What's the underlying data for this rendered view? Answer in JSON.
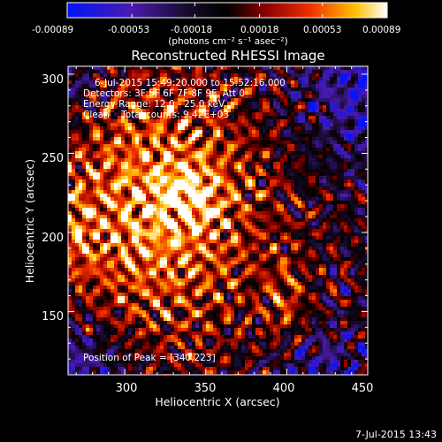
{
  "chart_data": {
    "type": "heatmap",
    "title": "Reconstructed RHESSI Image",
    "xlabel": "Heliocentric X (arcsec)",
    "ylabel": "Heliocentric Y (arcsec)",
    "xlim": [
      265,
      450
    ],
    "ylim": [
      110,
      305
    ],
    "xticks": [
      300,
      350,
      400,
      450
    ],
    "yticks": [
      150,
      200,
      250,
      300
    ],
    "colorbar": {
      "min": -0.00089,
      "max": 0.00089,
      "ticks": [
        "-0.00089",
        "-0.00053",
        "-0.00018",
        "0.00018",
        "0.00053",
        "0.00089"
      ],
      "units_label": "(photons cm⁻² s⁻¹ asec⁻²)",
      "colormap": "blue-purple-black-red-yellow-white"
    },
    "annotations": {
      "time_range": "6-Jul-2015 15:49:20.000 to 15:52:16.000",
      "detectors": "Detectors: 3F 5F 6F 7F 8F 9F, Att 0",
      "energy": "Energy Range: 12.0 - 25.0 keV",
      "clean": "Clean    Total counts: 9.42E+03",
      "peak": "Position of Peak = [340,223]"
    },
    "peak": {
      "x": 340,
      "y": 223
    },
    "footer_timestamp": "7-Jul-2015 13:43"
  }
}
